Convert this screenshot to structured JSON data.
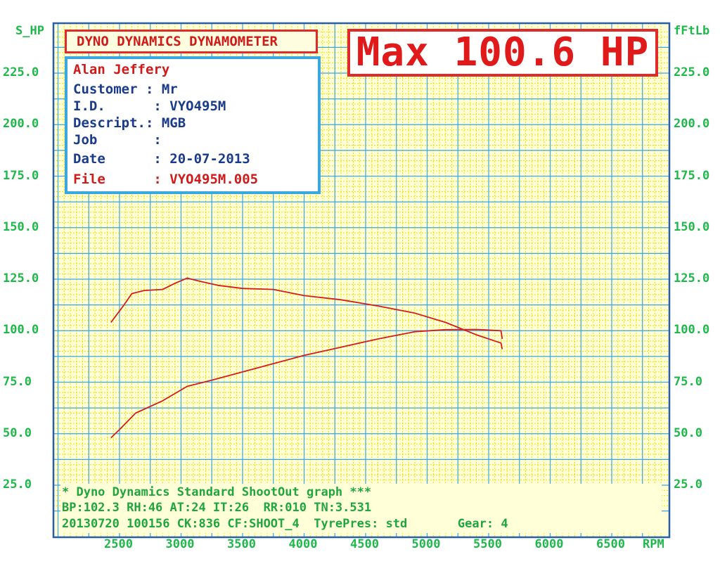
{
  "window": {
    "title": ""
  },
  "panel": {
    "title": "DYNO DYNAMICS DYNAMOMETER",
    "lines": [
      {
        "label": "",
        "value": "Alan Jeffery"
      },
      {
        "label": "Customer",
        "value": "Mr"
      },
      {
        "label": "I.D.",
        "value": "VYO495M"
      },
      {
        "label": "Descript.",
        "value": "MGB"
      },
      {
        "label": "Job",
        "value": ""
      },
      {
        "label": "Date",
        "value": "20-07-2013"
      },
      {
        "label": "File",
        "value": "VYO495M.005"
      }
    ],
    "text": {
      "name": "Alan Jeffery",
      "customer": "Customer : Mr",
      "id": "I.D.      : VYO495M",
      "descript": "Descript.: MGB",
      "job": "Job       :",
      "date": "Date      : 20-07-2013",
      "file": "File      : VYO495M.005"
    }
  },
  "max_label": "Max 100.6 HP",
  "footer": {
    "line1": "* Dyno Dynamics Standard ShootOut graph ***",
    "line2": "BP:102.3 RH:46 AT:24 IT:26  RR:010 TN:3.531",
    "line3": "20130720 100156 CK:836 CF:SHOOT_4  TyrePres: std       Gear: 4"
  },
  "colors": {
    "grid_yellow": "#f2e000",
    "grid_blue": "#3aa7de",
    "curve": "#d61c1c",
    "axis_text": "#1fb84a",
    "accent_red": "#e02b2b"
  },
  "chart_data": {
    "type": "line",
    "left_unit": "S_HP",
    "right_unit": "fFtLb",
    "x_unit": "RPM",
    "xlim": [
      2000,
      6900
    ],
    "ylim": [
      25,
      240
    ],
    "y_ticks": [
      "225.0",
      "200.0",
      "175.0",
      "150.0",
      "125.0",
      "100.0",
      "75.0",
      "50.0",
      "25.0"
    ],
    "y_tick_values": [
      225,
      200,
      175,
      150,
      125,
      100,
      75,
      50,
      25
    ],
    "x_ticks": [
      "2500",
      "3000",
      "3500",
      "4000",
      "4500",
      "5000",
      "5500",
      "6000",
      "6500"
    ],
    "x_tick_values": [
      2500,
      3000,
      3500,
      4000,
      4500,
      5000,
      5500,
      6000,
      6500
    ],
    "grid": true,
    "series": [
      {
        "name": "",
        "points": [
          [
            2430,
            104
          ],
          [
            2530,
            112
          ],
          [
            2600,
            118
          ],
          [
            2700,
            119.5
          ],
          [
            2850,
            120
          ],
          [
            2950,
            123
          ],
          [
            3050,
            125.5
          ],
          [
            3150,
            124
          ],
          [
            3300,
            122
          ],
          [
            3500,
            120.5
          ],
          [
            3750,
            120
          ],
          [
            4000,
            117
          ],
          [
            4300,
            115
          ],
          [
            4600,
            112
          ],
          [
            4900,
            108.5
          ],
          [
            5150,
            104
          ],
          [
            5400,
            98
          ],
          [
            5600,
            94
          ],
          [
            5610,
            91
          ]
        ]
      },
      {
        "name": "",
        "points": [
          [
            2430,
            48
          ],
          [
            2500,
            52
          ],
          [
            2630,
            60
          ],
          [
            2850,
            66
          ],
          [
            3050,
            73
          ],
          [
            3250,
            76
          ],
          [
            3500,
            80
          ],
          [
            3750,
            84
          ],
          [
            4000,
            88
          ],
          [
            4300,
            92
          ],
          [
            4600,
            96
          ],
          [
            4900,
            99.5
          ],
          [
            5150,
            100.5
          ],
          [
            5400,
            100.6
          ],
          [
            5600,
            100
          ],
          [
            5610,
            96
          ]
        ]
      }
    ]
  }
}
